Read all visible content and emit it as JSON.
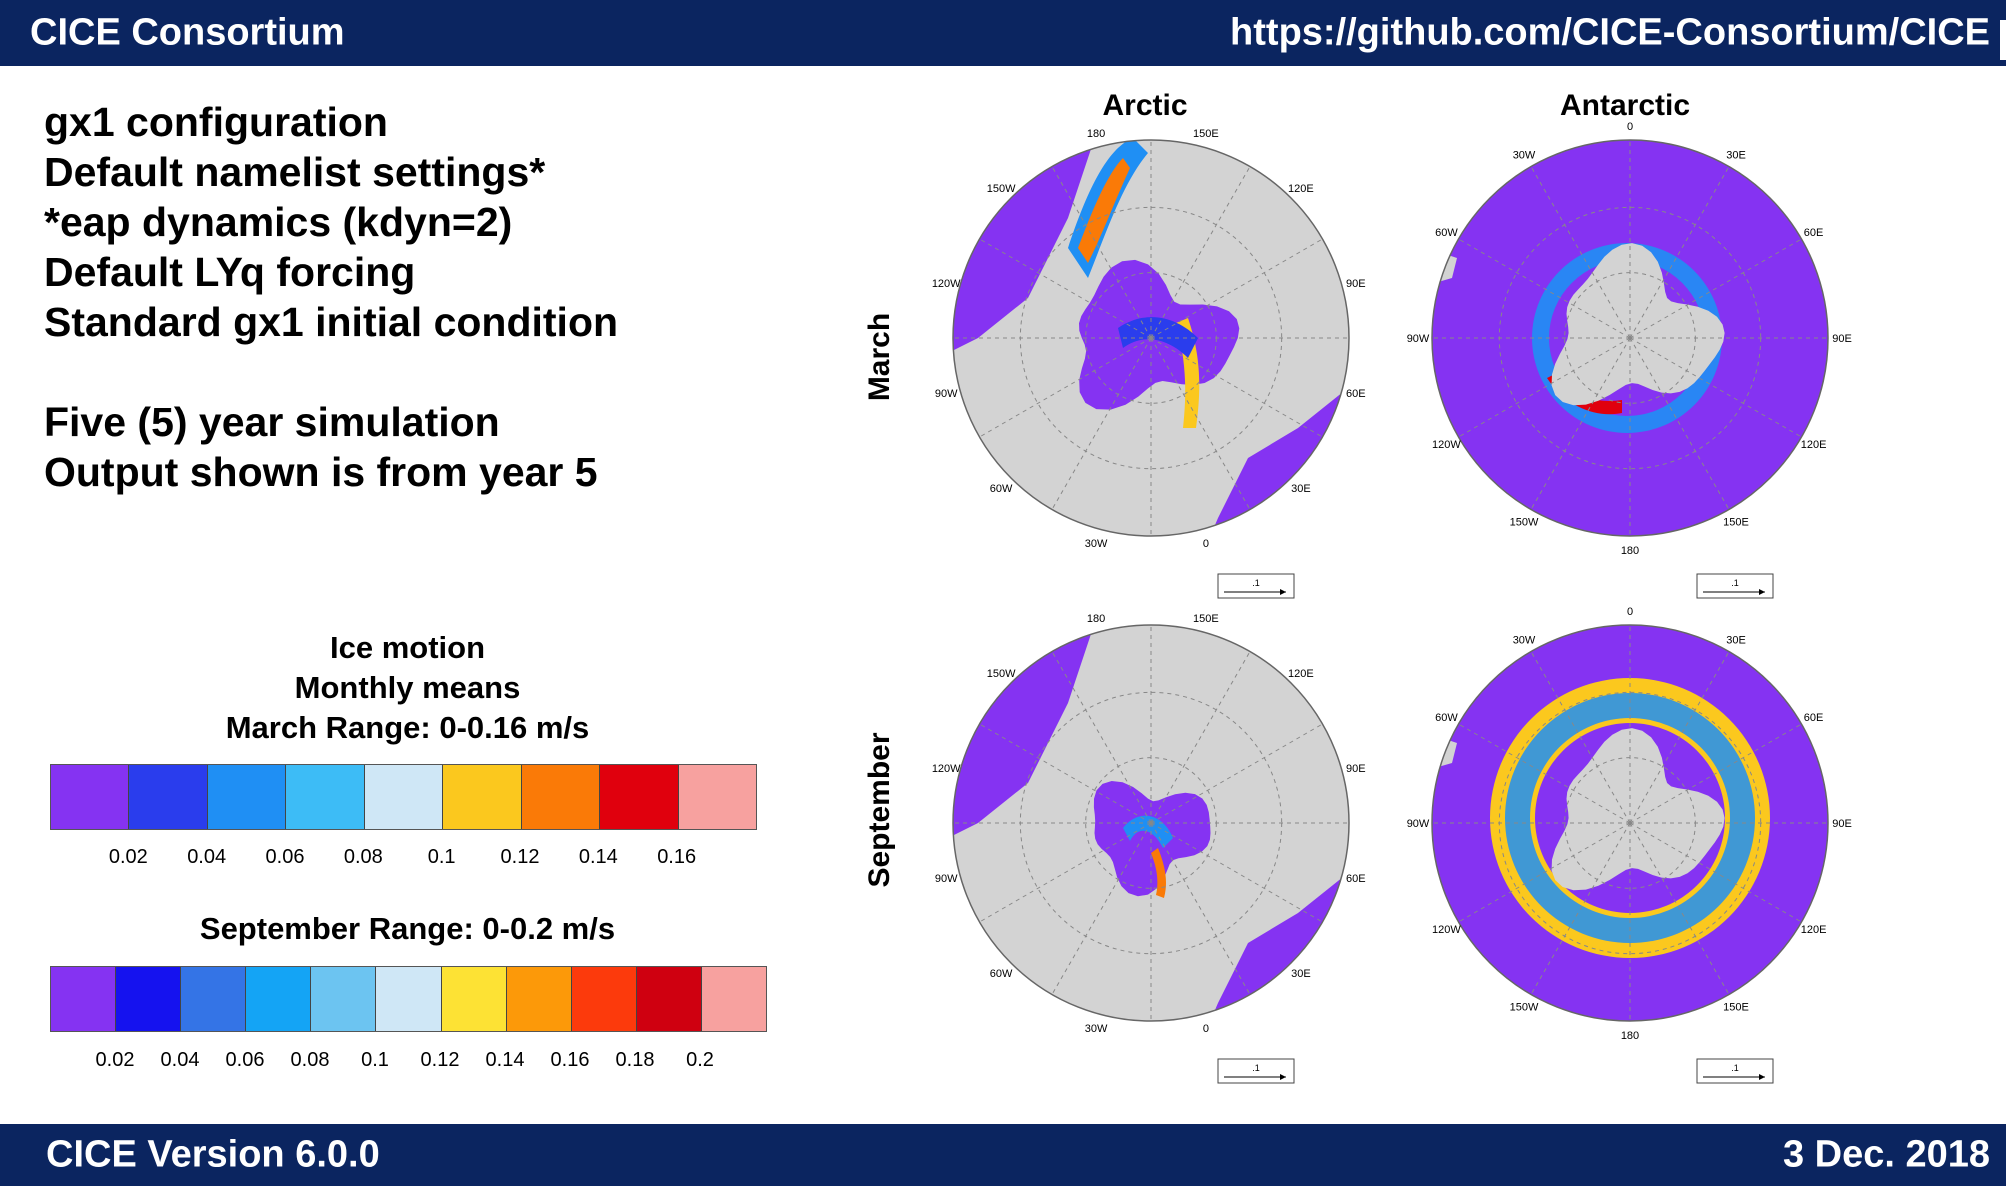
{
  "header": {
    "left_title": "CICE Consortium",
    "right_url": "https://github.com/CICE-Consortium/CICE"
  },
  "footer": {
    "left_text": "CICE Version 6.0.0",
    "right_date": "3 Dec. 2018"
  },
  "description": {
    "lines_1": [
      "gx1 configuration",
      "Default namelist settings*",
      "*eap dynamics (kdyn=2)",
      "Default LYq forcing",
      "Standard gx1 initial condition"
    ],
    "lines_2": [
      "Five (5) year simulation",
      "Output shown is from year 5"
    ]
  },
  "legend": {
    "title_lines": [
      "Ice motion",
      "Monthly means"
    ],
    "march_range": "March Range: 0-0.16 m/s",
    "march_colors": [
      "#8533f2",
      "#2a3ded",
      "#1f8ff4",
      "#3dbcf6",
      "#cfe7f6",
      "#fbc81e",
      "#fa7a07",
      "#e0000d",
      "#f7a19f"
    ],
    "march_ticks": [
      "0.02",
      "0.04",
      "0.06",
      "0.08",
      "0.1",
      "0.12",
      "0.14",
      "0.16"
    ],
    "september_range": "September  Range: 0-0.2 m/s",
    "september_colors": [
      "#8533f2",
      "#1512ef",
      "#3474e6",
      "#14a4f5",
      "#6cc4f1",
      "#cfe7f6",
      "#fde234",
      "#fc9909",
      "#fc3a0c",
      "#cf0010",
      "#f7a19f"
    ],
    "september_ticks": [
      "0.02",
      "0.04",
      "0.06",
      "0.08",
      "0.1",
      "0.12",
      "0.14",
      "0.16",
      "0.18",
      "0.2"
    ]
  },
  "maps": {
    "col_arctic": "Arctic",
    "col_antarctic": "Antarctic",
    "row_march": "March",
    "row_september": "September",
    "colors": {
      "open": "#8533f2",
      "land": "#d3d3d3",
      "grid": "#888888"
    },
    "arctic_labels": [
      "150E",
      "120E",
      "90E",
      "60E",
      "30E",
      "0",
      "30W",
      "60W",
      "90W",
      "120W",
      "150W",
      "180"
    ],
    "antarctic_labels": [
      "0",
      "30E",
      "60E",
      "90E",
      "120E",
      "150E",
      "180",
      "150W",
      "120W",
      "90W",
      "60W",
      "30W"
    ],
    "scale_label": ".1"
  }
}
